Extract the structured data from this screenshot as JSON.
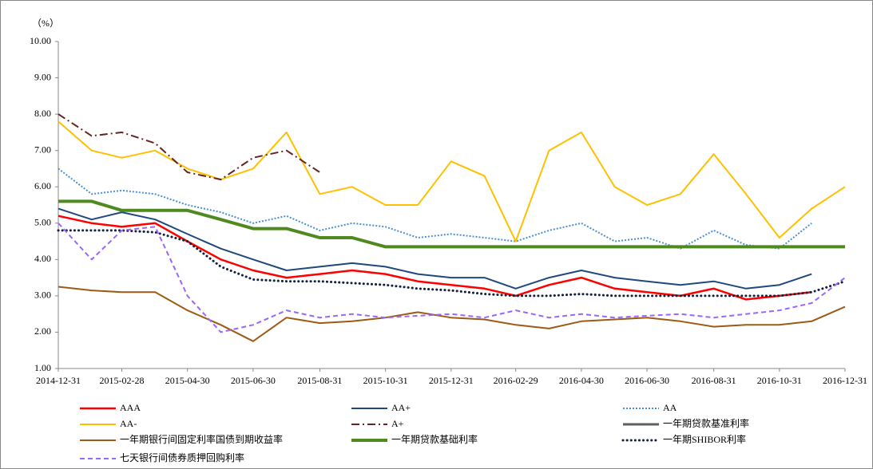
{
  "chart_data": {
    "type": "line",
    "y_unit": "（%）",
    "x": [
      "2014-12-31",
      "2015-01-31",
      "2015-02-28",
      "2015-03-31",
      "2015-04-30",
      "2015-05-31",
      "2015-06-30",
      "2015-07-31",
      "2015-08-31",
      "2015-09-30",
      "2015-10-31",
      "2015-11-30",
      "2015-12-31",
      "2016-01-31",
      "2016-02-29",
      "2016-03-31",
      "2016-04-30",
      "2016-05-31",
      "2016-06-30",
      "2016-07-31",
      "2016-08-31",
      "2016-09-30",
      "2016-10-31",
      "2016-11-30",
      "2016-12-31"
    ],
    "xlim": [
      "2014-12-31",
      "2016-12-31"
    ],
    "xticks": [
      "2014-12-31",
      "2015-02-28",
      "2015-04-30",
      "2015-06-30",
      "2015-08-31",
      "2015-10-31",
      "2015-12-31",
      "2016-02-29",
      "2016-04-30",
      "2016-06-30",
      "2016-08-31",
      "2016-10-31",
      "2016-12-31"
    ],
    "ylim": [
      1,
      10
    ],
    "yticks": [
      {
        "value": 1,
        "label": "1.00"
      },
      {
        "value": 2,
        "label": "2.00"
      },
      {
        "value": 3,
        "label": "3.00"
      },
      {
        "value": 4,
        "label": "4.00"
      },
      {
        "value": 5,
        "label": "5.00"
      },
      {
        "value": 6,
        "label": "6.00"
      },
      {
        "value": 7,
        "label": "7.00"
      },
      {
        "value": 8,
        "label": "8.00"
      },
      {
        "value": 9,
        "label": "9.00"
      },
      {
        "value": 10,
        "label": "10.00"
      }
    ],
    "grid": false,
    "series": [
      {
        "name": "AAA",
        "color": "#ff0000",
        "style": "solid",
        "width": 2.5,
        "values": [
          5.2,
          5.0,
          4.9,
          5.0,
          4.5,
          4.0,
          3.7,
          3.5,
          3.6,
          3.7,
          3.6,
          3.4,
          3.3,
          3.2,
          3.0,
          3.3,
          3.5,
          3.2,
          3.1,
          3.0,
          3.2,
          2.9,
          3.0,
          3.1,
          null
        ]
      },
      {
        "name": "AA+",
        "color": "#1f497d",
        "style": "solid",
        "width": 2,
        "values": [
          5.4,
          5.1,
          5.3,
          5.1,
          4.7,
          4.3,
          4.0,
          3.7,
          3.8,
          3.9,
          3.8,
          3.6,
          3.5,
          3.5,
          3.2,
          3.5,
          3.7,
          3.5,
          3.4,
          3.3,
          3.4,
          3.2,
          3.3,
          3.6,
          null
        ]
      },
      {
        "name": "AA",
        "color": "#4a8fd0",
        "style": "dotted",
        "width": 2,
        "values": [
          6.5,
          5.8,
          5.9,
          5.8,
          5.5,
          5.3,
          5.0,
          5.2,
          4.8,
          5.0,
          4.9,
          4.6,
          4.7,
          4.6,
          4.5,
          4.8,
          5.0,
          4.5,
          4.6,
          4.3,
          4.8,
          4.4,
          4.3,
          5.0,
          null
        ]
      },
      {
        "name": "AA-",
        "color": "#ffc000",
        "style": "solid",
        "width": 2,
        "values": [
          7.8,
          7.0,
          6.8,
          7.0,
          6.5,
          6.2,
          6.5,
          7.5,
          5.8,
          6.0,
          5.5,
          5.5,
          6.7,
          6.3,
          4.5,
          7.0,
          7.5,
          6.0,
          5.5,
          5.8,
          6.9,
          5.8,
          4.6,
          5.4,
          6.0
        ]
      },
      {
        "name": "A+",
        "color": "#632423",
        "style": "dashdot",
        "width": 2,
        "values": [
          8.0,
          7.4,
          7.5,
          7.2,
          6.4,
          6.2,
          6.8,
          7.0,
          6.4,
          null,
          null,
          null,
          null,
          null,
          null,
          null,
          null,
          null,
          null,
          null,
          null,
          null,
          null,
          null,
          null
        ]
      },
      {
        "name": "一年期贷款基准利率",
        "color": "#5f5f5f",
        "style": "solid",
        "width": 3,
        "values": [
          5.6,
          5.6,
          5.35,
          5.35,
          5.35,
          5.1,
          4.85,
          4.85,
          4.6,
          4.6,
          4.35,
          4.35,
          4.35,
          4.35,
          4.35,
          4.35,
          4.35,
          4.35,
          4.35,
          4.35,
          4.35,
          4.35,
          4.35,
          4.35,
          4.35
        ]
      },
      {
        "name": "一年期银行间固定利率国债到期收益率",
        "color": "#9c5b14",
        "style": "solid",
        "width": 2,
        "values": [
          3.25,
          3.15,
          3.1,
          3.1,
          2.6,
          2.2,
          1.75,
          2.4,
          2.25,
          2.3,
          2.4,
          2.55,
          2.4,
          2.35,
          2.2,
          2.1,
          2.3,
          2.35,
          2.4,
          2.3,
          2.15,
          2.2,
          2.2,
          2.3,
          2.7
        ]
      },
      {
        "name": "一年期贷款基础利率",
        "color": "#4e8a1e",
        "style": "solid",
        "width": 4,
        "values": [
          5.6,
          5.6,
          5.35,
          5.35,
          5.35,
          5.1,
          4.85,
          4.85,
          4.6,
          4.6,
          4.35,
          4.35,
          4.35,
          4.35,
          4.35,
          4.35,
          4.35,
          4.35,
          4.35,
          4.35,
          4.35,
          4.35,
          4.35,
          4.35,
          4.35
        ]
      },
      {
        "name": "一年期SHIBOR利率",
        "color": "#14213d",
        "style": "rounddot",
        "width": 3,
        "values": [
          4.8,
          4.8,
          4.8,
          4.75,
          4.5,
          3.8,
          3.45,
          3.4,
          3.4,
          3.35,
          3.3,
          3.2,
          3.15,
          3.05,
          3.0,
          3.0,
          3.05,
          3.0,
          3.0,
          3.0,
          3.0,
          3.0,
          3.0,
          3.1,
          3.4
        ]
      },
      {
        "name": "七天银行间债券质押回购利率",
        "color": "#9966ff",
        "style": "dashed",
        "width": 2,
        "values": [
          5.0,
          4.0,
          4.8,
          4.9,
          3.0,
          2.0,
          2.2,
          2.6,
          2.4,
          2.5,
          2.4,
          2.45,
          2.5,
          2.4,
          2.6,
          2.4,
          2.5,
          2.4,
          2.45,
          2.5,
          2.4,
          2.5,
          2.6,
          2.8,
          3.5
        ]
      }
    ]
  }
}
